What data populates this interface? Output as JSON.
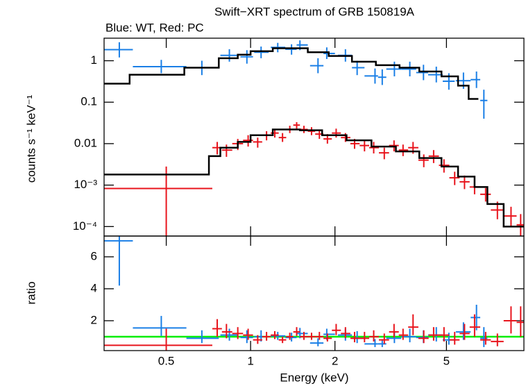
{
  "chart_data": [
    {
      "type": "errorbar",
      "title": "Swift−XRT spectrum of GRB 150819A",
      "subtitle": "Blue: WT, Red: PC",
      "ylabel": "counts s⁻¹ keV⁻¹",
      "log_x": true,
      "log_y": true,
      "xlim": [
        0.3,
        9.45
      ],
      "ylim": [
        5.9e-05,
        3.5
      ],
      "yticks": [
        {
          "value": 0.0001,
          "label": "10⁻⁴"
        },
        {
          "value": 0.001,
          "label": "10⁻³"
        },
        0.01,
        0.1,
        1
      ],
      "series": [
        {
          "type": "errorbar",
          "color": "#1a7fe6",
          "x": [
            0.34,
            0.48,
            0.67,
            0.84,
            0.97,
            1.09,
            1.25,
            1.4,
            1.5,
            1.74,
            1.87,
            2.18,
            2.4,
            2.78,
            2.95,
            3.26,
            3.7,
            4.14,
            4.6,
            5.1,
            5.75,
            6.4,
            6.8
          ],
          "x_low": [
            0.3,
            0.38,
            0.59,
            0.78,
            0.92,
            1.03,
            1.18,
            1.33,
            1.46,
            1.63,
            1.82,
            2.05,
            2.3,
            2.55,
            2.85,
            3.05,
            3.45,
            3.9,
            4.3,
            4.85,
            5.4,
            6.1,
            6.6
          ],
          "x_high": [
            0.38,
            0.59,
            0.77,
            0.9,
            1.02,
            1.16,
            1.33,
            1.46,
            1.6,
            1.82,
            2.0,
            2.3,
            2.55,
            2.85,
            3.05,
            3.45,
            3.9,
            4.3,
            4.85,
            5.35,
            6.1,
            6.6,
            7.0
          ],
          "values": [
            1.85,
            0.72,
            0.68,
            1.35,
            1.25,
            1.6,
            2.1,
            1.9,
            2.4,
            0.76,
            1.5,
            1.35,
            0.68,
            0.43,
            0.4,
            0.63,
            0.63,
            0.52,
            0.46,
            0.32,
            0.33,
            0.35,
            0.11
          ],
          "y_low": [
            1.2,
            0.5,
            0.45,
            0.95,
            0.85,
            1.15,
            1.6,
            1.4,
            1.8,
            0.5,
            1.1,
            0.95,
            0.45,
            0.28,
            0.26,
            0.42,
            0.42,
            0.34,
            0.3,
            0.2,
            0.21,
            0.22,
            0.04
          ],
          "y_high": [
            2.8,
            1.05,
            1.0,
            1.9,
            1.8,
            2.2,
            2.7,
            2.5,
            3.1,
            1.15,
            2.1,
            1.9,
            1.0,
            0.65,
            0.62,
            0.95,
            0.95,
            0.8,
            0.72,
            0.5,
            0.52,
            0.55,
            0.2
          ]
        },
        {
          "type": "errorbar",
          "color": "#e8141c",
          "x": [
            0.5,
            0.76,
            0.82,
            0.9,
            0.98,
            1.06,
            1.14,
            1.22,
            1.3,
            1.38,
            1.46,
            1.55,
            1.65,
            1.76,
            1.88,
            2.02,
            2.18,
            2.35,
            2.55,
            2.75,
            3.0,
            3.25,
            3.5,
            3.8,
            4.15,
            4.5,
            4.9,
            5.35,
            5.8,
            6.3,
            6.9,
            7.6,
            8.5,
            9.2
          ],
          "x_low": [
            0.3,
            0.73,
            0.79,
            0.86,
            0.94,
            1.02,
            1.1,
            1.18,
            1.26,
            1.34,
            1.42,
            1.5,
            1.6,
            1.7,
            1.82,
            1.95,
            2.1,
            2.27,
            2.45,
            2.65,
            2.87,
            3.12,
            3.38,
            3.65,
            3.97,
            4.32,
            4.7,
            5.12,
            5.57,
            6.05,
            6.6,
            7.2,
            8.0,
            8.9
          ],
          "x_high": [
            0.73,
            0.79,
            0.86,
            0.94,
            1.02,
            1.1,
            1.18,
            1.26,
            1.34,
            1.42,
            1.5,
            1.6,
            1.7,
            1.82,
            1.95,
            2.1,
            2.27,
            2.45,
            2.65,
            2.87,
            3.12,
            3.38,
            3.65,
            3.97,
            4.32,
            4.7,
            5.12,
            5.57,
            6.05,
            6.6,
            7.2,
            8.0,
            8.9,
            9.45
          ],
          "values": [
            0.00083,
            0.008,
            0.007,
            0.01,
            0.012,
            0.011,
            0.016,
            0.018,
            0.014,
            0.022,
            0.028,
            0.022,
            0.02,
            0.017,
            0.013,
            0.018,
            0.014,
            0.01,
            0.009,
            0.008,
            0.006,
            0.009,
            0.007,
            0.008,
            0.004,
            0.005,
            0.003,
            0.0015,
            0.0012,
            0.0009,
            0.0006,
            0.00025,
            0.00018,
            0.00011
          ],
          "y_low": [
            6e-05,
            0.0055,
            0.0048,
            0.007,
            0.0085,
            0.008,
            0.012,
            0.014,
            0.011,
            0.018,
            0.023,
            0.018,
            0.016,
            0.013,
            0.01,
            0.014,
            0.011,
            0.0075,
            0.0065,
            0.0058,
            0.0042,
            0.0065,
            0.005,
            0.0057,
            0.0027,
            0.0034,
            0.002,
            0.001,
            0.0008,
            0.0006,
            0.0004,
            0.00015,
            0.0001,
            6e-05
          ],
          "y_high": [
            0.0028,
            0.011,
            0.0095,
            0.013,
            0.016,
            0.014,
            0.02,
            0.022,
            0.018,
            0.027,
            0.033,
            0.027,
            0.025,
            0.021,
            0.017,
            0.023,
            0.018,
            0.013,
            0.012,
            0.011,
            0.008,
            0.012,
            0.0095,
            0.011,
            0.0055,
            0.007,
            0.0042,
            0.0021,
            0.0017,
            0.0013,
            0.00085,
            0.0004,
            0.0003,
            0.0002
          ]
        },
        {
          "type": "step",
          "color": "#000000",
          "bins": [
            0.3,
            0.37,
            0.58,
            0.77,
            0.9,
            1.0,
            1.2,
            1.4,
            1.6,
            1.9,
            2.3,
            2.8,
            3.4,
            4.0,
            4.8,
            5.5,
            6.0,
            6.5
          ],
          "values": [
            0.28,
            0.46,
            0.68,
            1.15,
            1.4,
            1.7,
            2.0,
            2.0,
            1.6,
            1.3,
            0.95,
            0.78,
            0.68,
            0.55,
            0.42,
            0.25,
            0.12
          ]
        },
        {
          "type": "step",
          "color": "#000000",
          "bins": [
            0.3,
            0.71,
            0.78,
            0.9,
            1.0,
            1.2,
            1.5,
            1.8,
            2.2,
            2.7,
            3.3,
            4.0,
            4.8,
            5.5,
            6.3,
            7.0,
            8.0,
            9.45
          ],
          "values": [
            0.0018,
            0.005,
            0.008,
            0.011,
            0.016,
            0.022,
            0.021,
            0.016,
            0.012,
            0.0085,
            0.0065,
            0.0045,
            0.0028,
            0.0016,
            0.0009,
            0.00035,
            0.0001
          ]
        }
      ]
    },
    {
      "type": "errorbar",
      "ylabel": "ratio",
      "xlabel": "Energy (keV)",
      "log_x": true,
      "log_y": false,
      "xlim": [
        0.3,
        9.45
      ],
      "ylim": [
        0.13,
        7.3
      ],
      "xticks": [
        0.5,
        1,
        2,
        5
      ],
      "yticks": [
        2,
        4,
        6
      ],
      "hline": 1,
      "hline_color": "#00ee00",
      "series": [
        {
          "type": "errorbar",
          "color": "#1a7fe6",
          "x": [
            0.34,
            0.48,
            0.67,
            0.84,
            0.97,
            1.09,
            1.25,
            1.4,
            1.5,
            1.74,
            1.87,
            2.18,
            2.4,
            2.78,
            2.95,
            3.26,
            3.7,
            4.14,
            4.6,
            5.1,
            5.75,
            6.4,
            6.8
          ],
          "x_low": [
            0.3,
            0.38,
            0.59,
            0.78,
            0.92,
            1.03,
            1.18,
            1.33,
            1.46,
            1.63,
            1.82,
            2.05,
            2.3,
            2.55,
            2.85,
            3.05,
            3.45,
            3.9,
            4.3,
            4.85,
            5.4,
            6.1,
            6.6
          ],
          "x_high": [
            0.38,
            0.59,
            0.77,
            0.9,
            1.02,
            1.16,
            1.33,
            1.46,
            1.6,
            1.82,
            2.0,
            2.3,
            2.55,
            2.85,
            3.05,
            3.45,
            3.9,
            4.3,
            4.85,
            5.35,
            6.1,
            6.6,
            7.0
          ],
          "values": [
            7.0,
            1.55,
            0.9,
            1.1,
            0.95,
            1.0,
            1.05,
            0.95,
            1.2,
            0.6,
            1.15,
            1.1,
            0.9,
            0.55,
            0.55,
            0.9,
            1.0,
            0.95,
            1.1,
            0.8,
            1.3,
            2.2,
            0.9
          ],
          "y_low": [
            4.2,
            1.05,
            0.6,
            0.75,
            0.6,
            0.7,
            0.8,
            0.7,
            0.9,
            0.4,
            0.8,
            0.75,
            0.6,
            0.35,
            0.35,
            0.6,
            0.65,
            0.6,
            0.7,
            0.5,
            0.8,
            1.4,
            0.35
          ],
          "y_high": [
            7.3,
            2.3,
            1.4,
            1.5,
            1.4,
            1.4,
            1.3,
            1.25,
            1.55,
            0.9,
            1.5,
            1.5,
            1.35,
            0.85,
            0.85,
            1.35,
            1.5,
            1.4,
            1.6,
            1.25,
            1.9,
            3.0,
            1.6
          ]
        },
        {
          "type": "errorbar",
          "color": "#e8141c",
          "x": [
            0.5,
            0.76,
            0.82,
            0.9,
            0.98,
            1.06,
            1.14,
            1.22,
            1.3,
            1.38,
            1.46,
            1.55,
            1.65,
            1.76,
            1.88,
            2.02,
            2.18,
            2.35,
            2.55,
            2.75,
            3.0,
            3.25,
            3.5,
            3.8,
            4.15,
            4.5,
            4.9,
            5.35,
            5.8,
            6.3,
            6.9,
            7.6,
            8.5,
            9.2
          ],
          "x_low": [
            0.3,
            0.73,
            0.79,
            0.86,
            0.94,
            1.02,
            1.1,
            1.18,
            1.26,
            1.34,
            1.42,
            1.5,
            1.6,
            1.7,
            1.82,
            1.95,
            2.1,
            2.27,
            2.45,
            2.65,
            2.87,
            3.12,
            3.38,
            3.65,
            3.97,
            4.32,
            4.7,
            5.12,
            5.57,
            6.05,
            6.6,
            7.2,
            8.0,
            8.9
          ],
          "x_high": [
            0.73,
            0.79,
            0.86,
            0.94,
            1.02,
            1.1,
            1.18,
            1.26,
            1.34,
            1.42,
            1.5,
            1.6,
            1.7,
            1.82,
            1.95,
            2.1,
            2.27,
            2.45,
            2.65,
            2.87,
            3.12,
            3.38,
            3.65,
            3.97,
            4.32,
            4.7,
            5.12,
            5.57,
            6.05,
            6.6,
            7.2,
            8.0,
            8.9,
            9.45
          ],
          "values": [
            0.46,
            1.5,
            1.3,
            1.2,
            1.1,
            0.8,
            1.0,
            1.1,
            0.8,
            1.0,
            1.3,
            1.0,
            1.0,
            1.0,
            0.9,
            1.4,
            1.2,
            0.9,
            0.9,
            1.0,
            0.8,
            1.3,
            1.1,
            1.6,
            0.9,
            1.1,
            1.1,
            0.8,
            1.2,
            1.6,
            0.8,
            0.7,
            2.0,
            1.9
          ],
          "y_low": [
            0.13,
            1.0,
            0.9,
            0.85,
            0.8,
            0.55,
            0.75,
            0.85,
            0.6,
            0.8,
            1.05,
            0.8,
            0.8,
            0.8,
            0.7,
            1.1,
            0.9,
            0.65,
            0.65,
            0.7,
            0.55,
            0.95,
            0.8,
            1.1,
            0.6,
            0.75,
            0.7,
            0.5,
            0.8,
            1.0,
            0.5,
            0.4,
            1.2,
            1.0
          ],
          "y_high": [
            1.5,
            2.1,
            1.8,
            1.6,
            1.5,
            1.1,
            1.3,
            1.35,
            1.0,
            1.25,
            1.6,
            1.3,
            1.25,
            1.3,
            1.2,
            1.8,
            1.6,
            1.3,
            1.3,
            1.4,
            1.2,
            1.8,
            1.5,
            2.4,
            1.4,
            1.6,
            1.6,
            1.3,
            1.8,
            2.4,
            1.3,
            1.2,
            2.9,
            2.9
          ]
        }
      ]
    }
  ]
}
